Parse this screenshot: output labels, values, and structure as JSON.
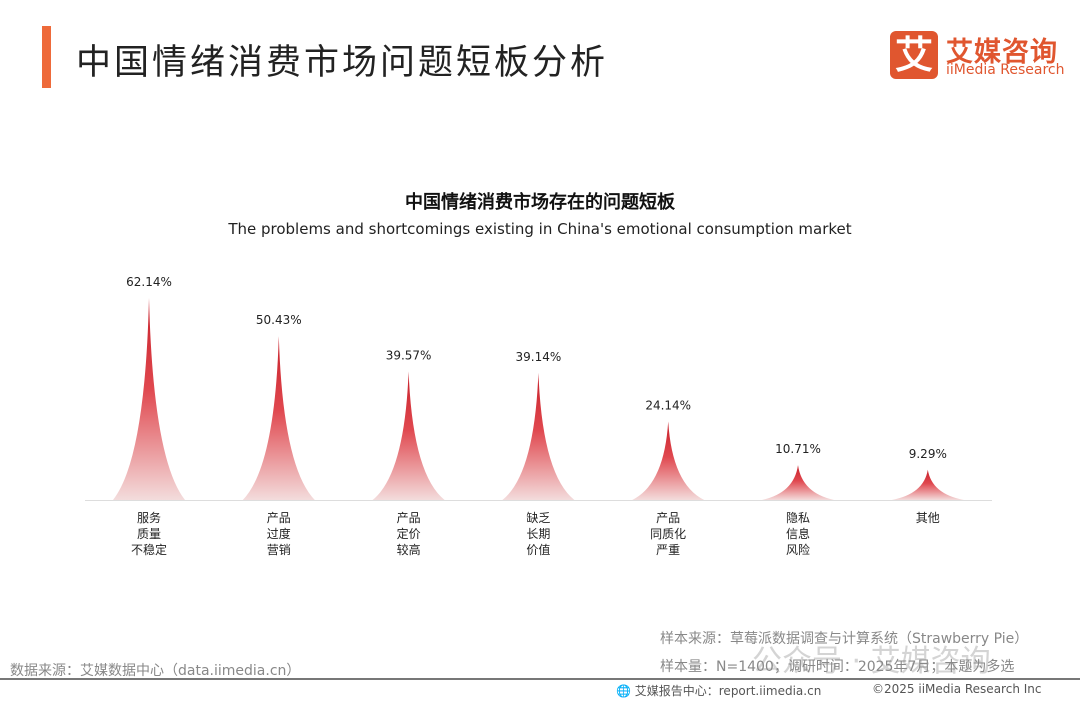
{
  "header": {
    "title": "中国情绪消费市场问题短板分析",
    "logo_mark": "艾",
    "logo_cn": "艾媒咨询",
    "logo_en": "iiMedia Research"
  },
  "chart_data": {
    "type": "bar",
    "title": "中国情绪消费市场存在的问题短板",
    "subtitle": "The problems and shortcomings existing in China's emotional consumption market",
    "categories": [
      "服务\n质量\n不稳定",
      "产品\n过度\n营销",
      "产品\n定价\n较高",
      "缺乏\n长期\n价值",
      "产品\n同质化\n严重",
      "隐私\n信息\n风险",
      "其他"
    ],
    "values": [
      62.14,
      50.43,
      39.57,
      39.14,
      24.14,
      10.71,
      9.29
    ],
    "data_labels": [
      "62.14%",
      "50.43%",
      "39.57%",
      "39.14%",
      "24.14%",
      "10.71%",
      "9.29%"
    ],
    "unit": "%",
    "ylim": [
      0,
      70
    ],
    "grid": false,
    "colors": {
      "top": "#c8202a",
      "bottom": "#f3dcdc"
    }
  },
  "footer": {
    "sample_source": "样本来源：草莓派数据调查与计算系统（Strawberry Pie）",
    "sample_size": "样本量：N=1400；调研时间：2025年7月；本题为多选",
    "watermark": "公众号 · 艾媒咨询",
    "data_source": "数据来源：艾媒数据中心（data.iimedia.cn）",
    "report_center": "艾媒报告中心：report.iimedia.cn",
    "copyright": "©2025  iiMedia Research  Inc"
  }
}
